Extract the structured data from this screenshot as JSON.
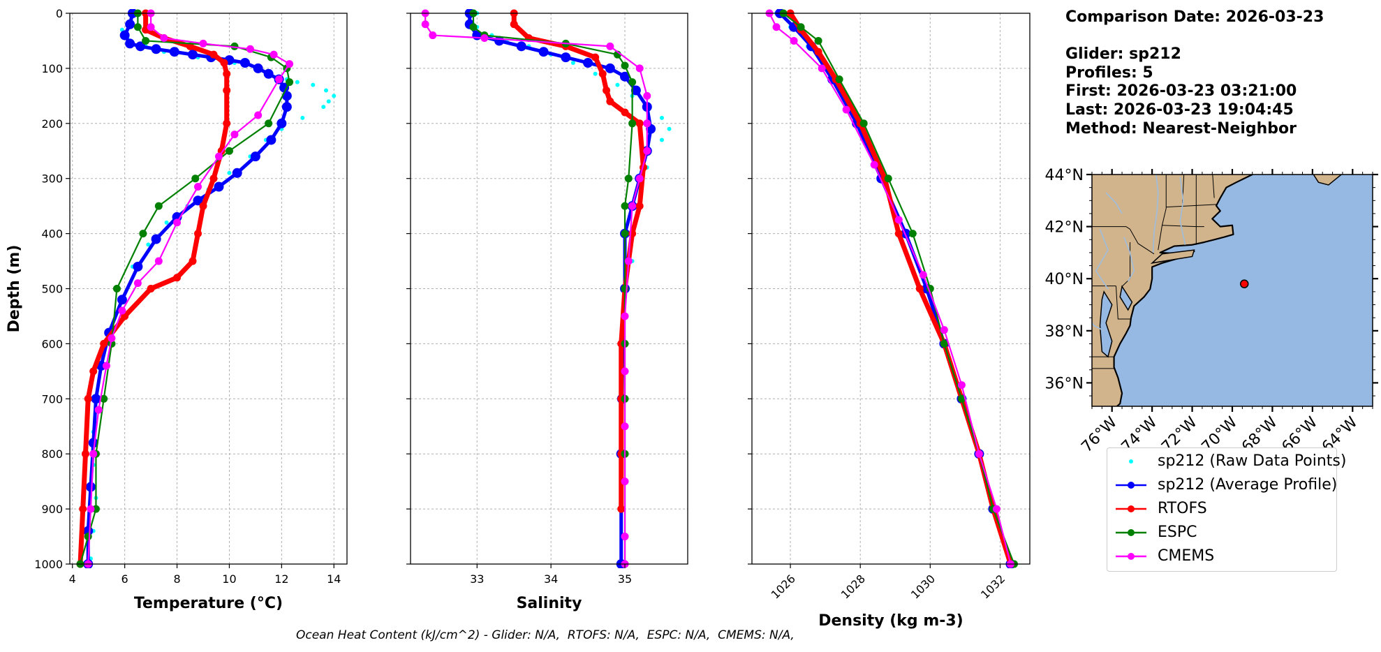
{
  "info": {
    "comparison_date": "Comparison Date: 2026-03-23",
    "glider": "Glider: sp212",
    "profiles": "Profiles: 5",
    "first": "First: 2026-03-23 03:21:00",
    "last": "Last: 2026-03-23 19:04:45",
    "method": "Method: Nearest-Neighbor"
  },
  "footer": "Ocean Heat Content (kJ/cm^2) - Glider: N/A,  RTOFS: N/A,  ESPC: N/A,  CMEMS: N/A,",
  "legend": [
    {
      "label": "sp212 (Raw Data Points)",
      "color": "#00ffff",
      "style": "dots"
    },
    {
      "label": "sp212 (Average Profile)",
      "color": "#0000ff",
      "style": "line-marker"
    },
    {
      "label": "RTOFS",
      "color": "#ff0000",
      "style": "line-marker"
    },
    {
      "label": "ESPC",
      "color": "#008000",
      "style": "line-marker"
    },
    {
      "label": "CMEMS",
      "color": "#ff00ff",
      "style": "line-marker"
    }
  ],
  "chart_data": [
    {
      "type": "line",
      "xlabel": "Temperature (°C)",
      "ylabel": "Depth (m)",
      "xlim": [
        3.9,
        14.5
      ],
      "ylim": [
        1000,
        0
      ],
      "xticks": [
        4,
        6,
        8,
        10,
        12,
        14
      ],
      "yticks": [
        0,
        100,
        200,
        300,
        400,
        500,
        600,
        700,
        800,
        900,
        1000
      ],
      "grid": true,
      "series": [
        {
          "name": "sp212 (Raw Data Points)",
          "style": "dots",
          "x": [
            6.2,
            5.9,
            6.1,
            6.3,
            6.8,
            7.5,
            8.8,
            10.2,
            11.0,
            11.6,
            12.2,
            12.6,
            13.2,
            13.7,
            14.0,
            13.8,
            13.6,
            12.8,
            12.0,
            11.4,
            10.8,
            10.0,
            9.2,
            8.4,
            7.6,
            6.9,
            6.3,
            5.8,
            5.4,
            5.1,
            4.9,
            4.8,
            4.8,
            4.9,
            4.8,
            4.7
          ],
          "y": [
            0,
            30,
            45,
            55,
            60,
            70,
            80,
            90,
            100,
            110,
            120,
            125,
            130,
            140,
            150,
            160,
            170,
            190,
            210,
            230,
            260,
            290,
            320,
            350,
            380,
            420,
            460,
            520,
            580,
            640,
            700,
            760,
            820,
            880,
            940,
            990
          ]
        },
        {
          "name": "sp212 (Average Profile)",
          "x": [
            6.3,
            6.2,
            6.0,
            6.2,
            6.6,
            7.2,
            7.9,
            8.6,
            9.3,
            10.0,
            10.6,
            11.1,
            11.5,
            11.9,
            12.1,
            12.2,
            12.2,
            12.0,
            11.6,
            11.0,
            10.3,
            9.6,
            8.8,
            8.0,
            7.2,
            6.5,
            5.9,
            5.4,
            5.1,
            4.9,
            4.8,
            4.7,
            4.6,
            4.6
          ],
          "y": [
            0,
            20,
            40,
            55,
            60,
            65,
            70,
            75,
            80,
            85,
            90,
            100,
            110,
            120,
            135,
            150,
            170,
            200,
            230,
            260,
            290,
            315,
            340,
            370,
            410,
            460,
            520,
            580,
            640,
            700,
            780,
            860,
            940,
            1000
          ]
        },
        {
          "name": "RTOFS",
          "x": [
            6.8,
            6.8,
            7.5,
            8.5,
            9.4,
            9.8,
            9.9,
            9.9,
            9.9,
            9.7,
            9.4,
            9.0,
            8.8,
            8.6,
            8.0,
            7.0,
            6.0,
            5.2,
            4.8,
            4.6,
            4.5,
            4.4,
            4.3
          ],
          "y": [
            0,
            30,
            45,
            60,
            75,
            90,
            110,
            140,
            200,
            250,
            300,
            350,
            400,
            450,
            480,
            500,
            550,
            600,
            650,
            700,
            800,
            900,
            1000
          ]
        },
        {
          "name": "ESPC",
          "x": [
            6.5,
            6.5,
            6.8,
            10.2,
            11.6,
            12.2,
            12.3,
            11.5,
            10.0,
            8.7,
            7.3,
            6.7,
            5.7,
            5.5,
            5.2,
            4.9,
            4.9,
            4.6,
            4.3
          ],
          "y": [
            0,
            25,
            50,
            60,
            80,
            100,
            125,
            200,
            250,
            300,
            350,
            400,
            500,
            600,
            700,
            800,
            900,
            950,
            1000
          ]
        },
        {
          "name": "CMEMS",
          "x": [
            7.0,
            7.0,
            7.5,
            9.0,
            10.8,
            11.7,
            12.3,
            11.9,
            11.1,
            10.2,
            9.6,
            8.8,
            8.0,
            7.3,
            6.5,
            5.9,
            5.5,
            5.3,
            5.0,
            4.8,
            4.7,
            4.6
          ],
          "y": [
            0,
            25,
            45,
            55,
            65,
            75,
            92,
            120,
            185,
            220,
            260,
            315,
            380,
            450,
            490,
            540,
            590,
            640,
            720,
            800,
            900,
            1000
          ]
        }
      ]
    },
    {
      "type": "line",
      "xlabel": "Salinity",
      "xlim": [
        32.1,
        35.85
      ],
      "ylim": [
        1000,
        0
      ],
      "xticks": [
        33,
        34,
        35
      ],
      "yticks": [
        0,
        100,
        200,
        300,
        400,
        500,
        600,
        700,
        800,
        900,
        1000
      ],
      "grid": true,
      "series": [
        {
          "name": "sp212 (Raw Data Points)",
          "style": "dots",
          "x": [
            33.0,
            33.0,
            33.2,
            33.4,
            33.7,
            34.0,
            34.3,
            34.6,
            34.9,
            35.1,
            35.3,
            35.5,
            35.6,
            35.5,
            35.3,
            35.2,
            35.1,
            35.0,
            35.0,
            35.0,
            35.0,
            35.0
          ],
          "y": [
            0,
            25,
            40,
            50,
            60,
            75,
            90,
            110,
            130,
            150,
            170,
            190,
            210,
            230,
            280,
            350,
            450,
            550,
            650,
            750,
            850,
            950
          ]
        },
        {
          "name": "sp212 (Average Profile)",
          "x": [
            32.9,
            32.9,
            33.0,
            33.3,
            33.6,
            33.9,
            34.2,
            34.5,
            34.8,
            35.0,
            35.15,
            35.3,
            35.35,
            35.3,
            35.2,
            35.1,
            35.0,
            35.0,
            34.97,
            34.96,
            34.95,
            34.95
          ],
          "y": [
            0,
            20,
            40,
            50,
            60,
            70,
            80,
            90,
            100,
            115,
            140,
            170,
            210,
            250,
            300,
            350,
            400,
            500,
            600,
            700,
            800,
            1000
          ]
        },
        {
          "name": "RTOFS",
          "x": [
            33.5,
            33.5,
            33.7,
            34.2,
            34.6,
            34.7,
            34.75,
            34.8,
            35.0,
            35.2,
            35.25,
            35.2,
            35.1,
            35.0,
            34.95,
            34.95,
            34.95,
            34.95
          ],
          "y": [
            0,
            20,
            45,
            60,
            80,
            110,
            140,
            160,
            180,
            200,
            280,
            350,
            400,
            500,
            600,
            700,
            800,
            900
          ]
        },
        {
          "name": "ESPC",
          "x": [
            32.95,
            32.95,
            33.1,
            34.2,
            34.9,
            35.0,
            35.1,
            35.1,
            35.05,
            35.0,
            35.0,
            35.0,
            35.0,
            35.0,
            35.0,
            35.0
          ],
          "y": [
            0,
            25,
            40,
            55,
            75,
            95,
            125,
            200,
            300,
            350,
            400,
            500,
            600,
            700,
            800,
            1000
          ]
        },
        {
          "name": "CMEMS",
          "x": [
            32.3,
            32.3,
            32.4,
            33.1,
            34.8,
            35.2,
            35.3,
            35.3,
            35.3,
            35.2,
            35.1,
            35.05,
            35.0,
            35.0,
            35.0,
            35.0,
            35.0,
            35.0
          ],
          "y": [
            0,
            20,
            40,
            45,
            60,
            100,
            150,
            200,
            250,
            300,
            350,
            450,
            550,
            650,
            750,
            850,
            950,
            1000
          ]
        }
      ]
    },
    {
      "type": "line",
      "xlabel": "Density (kg m-3)",
      "xlim": [
        1024.9,
        1032.85
      ],
      "ylim": [
        1000,
        0
      ],
      "xticks": [
        1026,
        1028,
        1030,
        1032
      ],
      "yticks": [
        0,
        100,
        200,
        300,
        400,
        500,
        600,
        700,
        800,
        900,
        1000
      ],
      "grid": true,
      "series": [
        {
          "name": "sp212 (Raw Data Points)",
          "style": "dots",
          "x": [
            1025.6,
            1026.0,
            1026.5,
            1027.2,
            1027.9,
            1028.6,
            1029.3,
            1029.9,
            1030.4,
            1030.9,
            1031.4,
            1031.8,
            1032.3
          ],
          "y": [
            0,
            25,
            60,
            120,
            200,
            300,
            400,
            500,
            600,
            700,
            800,
            900,
            1000
          ]
        },
        {
          "name": "sp212 (Average Profile)",
          "x": [
            1025.7,
            1026.1,
            1026.6,
            1027.2,
            1027.9,
            1028.6,
            1029.3,
            1029.9,
            1030.4,
            1030.9,
            1031.4,
            1031.8,
            1032.3
          ],
          "y": [
            0,
            25,
            60,
            120,
            200,
            300,
            400,
            500,
            600,
            700,
            800,
            900,
            1000
          ]
        },
        {
          "name": "RTOFS",
          "x": [
            1026.0,
            1026.3,
            1026.8,
            1027.3,
            1028.0,
            1028.7,
            1029.1,
            1029.7,
            1030.4,
            1030.9,
            1031.4,
            1031.8,
            1032.3
          ],
          "y": [
            0,
            30,
            70,
            120,
            200,
            300,
            400,
            500,
            600,
            700,
            800,
            900,
            1000
          ]
        },
        {
          "name": "ESPC",
          "x": [
            1025.8,
            1026.3,
            1026.8,
            1027.4,
            1028.1,
            1028.8,
            1029.5,
            1030.0,
            1030.4,
            1030.9,
            1031.4,
            1031.8,
            1032.4
          ],
          "y": [
            0,
            25,
            50,
            120,
            200,
            300,
            400,
            500,
            600,
            700,
            800,
            900,
            1000
          ]
        },
        {
          "name": "CMEMS",
          "x": [
            1025.4,
            1025.6,
            1026.1,
            1026.9,
            1027.6,
            1028.4,
            1029.1,
            1029.8,
            1030.4,
            1030.9,
            1031.4,
            1031.9,
            1032.3
          ],
          "y": [
            0,
            25,
            50,
            100,
            175,
            275,
            375,
            475,
            575,
            675,
            800,
            900,
            1000
          ]
        }
      ]
    }
  ],
  "map": {
    "lat_labels": [
      "44°N",
      "42°N",
      "40°N",
      "38°N",
      "36°N"
    ],
    "lon_labels": [
      "76°W",
      "74°W",
      "72°W",
      "70°W",
      "68°W",
      "66°W",
      "64°W"
    ],
    "ocean_color": "#96b9e3",
    "land_color": "#d2b48c",
    "glider_position": {
      "lat": 39.8,
      "lon": -69.4
    }
  }
}
